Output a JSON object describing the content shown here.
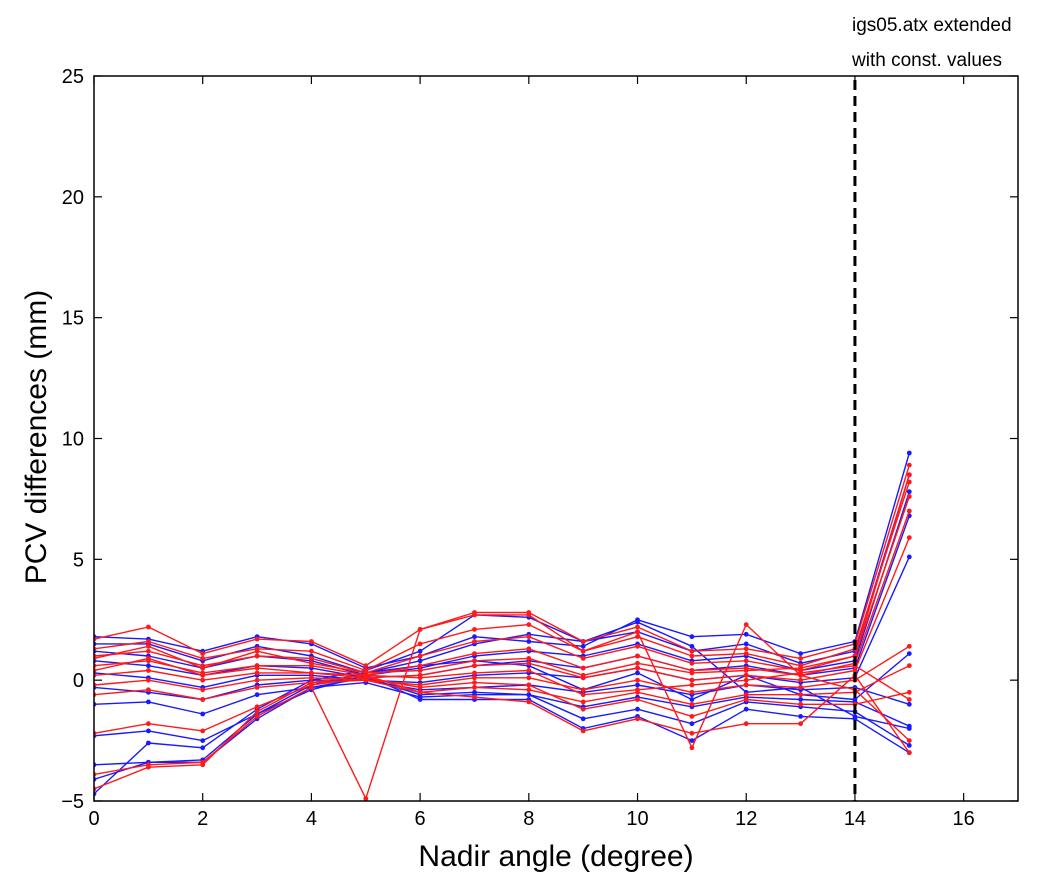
{
  "chart_data": {
    "type": "line",
    "title": "",
    "xlabel": "Nadir angle (degree)",
    "ylabel": "PCV differences (mm)",
    "xlim": [
      0,
      17
    ],
    "ylim": [
      -5,
      25
    ],
    "xticks": [
      0,
      2,
      4,
      6,
      8,
      10,
      12,
      14,
      16
    ],
    "yticks": [
      -5,
      0,
      5,
      10,
      15,
      20,
      25
    ],
    "grid": false,
    "legend": "none",
    "colors": {
      "series_a": "#1a1aff",
      "series_b": "#ff1a1a",
      "marker_line": "#000000"
    },
    "annotation": {
      "lines": [
        "igs05.atx extended",
        "with const. values"
      ],
      "vline_x": 14
    },
    "x": [
      0,
      1,
      2,
      3,
      4,
      5,
      6,
      7,
      8,
      9,
      10,
      11,
      12,
      13,
      14,
      15
    ],
    "series": [
      {
        "color": "blue",
        "values": [
          1.8,
          1.7,
          1.2,
          1.8,
          1.5,
          0.5,
          1.0,
          1.8,
          1.6,
          1.4,
          2.5,
          1.8,
          1.9,
          1.1,
          1.6,
          9.4
        ]
      },
      {
        "color": "blue",
        "values": [
          1.5,
          1.5,
          0.8,
          1.4,
          1.0,
          0.3,
          0.8,
          1.5,
          1.9,
          1.6,
          2.0,
          1.2,
          1.5,
          0.7,
          1.2,
          8.5
        ]
      },
      {
        "color": "blue",
        "values": [
          1.2,
          1.0,
          0.5,
          1.0,
          0.8,
          0.2,
          0.5,
          1.0,
          1.2,
          1.0,
          1.5,
          0.8,
          1.0,
          0.4,
          0.8,
          7.8
        ]
      },
      {
        "color": "blue",
        "values": [
          0.8,
          0.6,
          0.2,
          0.6,
          0.5,
          0.1,
          0.2,
          0.6,
          0.8,
          0.5,
          1.0,
          0.4,
          0.6,
          0.2,
          0.5,
          6.8
        ]
      },
      {
        "color": "blue",
        "values": [
          0.3,
          0.1,
          -0.3,
          0.2,
          0.2,
          0.0,
          -0.1,
          0.2,
          0.3,
          0.1,
          0.5,
          0.0,
          0.2,
          -0.1,
          0.1,
          5.1
        ]
      },
      {
        "color": "blue",
        "values": [
          -0.3,
          -0.5,
          -0.8,
          -0.2,
          0.0,
          0.0,
          -0.4,
          -0.3,
          -0.2,
          -0.5,
          -0.2,
          -0.6,
          -0.2,
          -0.4,
          -0.3,
          -1.0
        ]
      },
      {
        "color": "blue",
        "values": [
          -1.0,
          -0.9,
          -1.4,
          -0.6,
          -0.3,
          -0.1,
          -0.7,
          -0.6,
          -0.6,
          -1.1,
          -0.7,
          -1.1,
          -0.7,
          -0.8,
          -0.9,
          -1.9
        ]
      },
      {
        "color": "blue",
        "values": [
          -2.3,
          -2.1,
          -2.5,
          -1.4,
          -0.4,
          0.2,
          -0.8,
          -0.8,
          -0.8,
          -2.0,
          -1.5,
          -2.5,
          -1.2,
          -1.5,
          -1.6,
          -3.0
        ]
      },
      {
        "color": "blue",
        "values": [
          -3.5,
          -3.4,
          -3.4,
          -1.6,
          -0.3,
          0.1,
          -0.6,
          -0.5,
          -0.6,
          -1.6,
          -1.2,
          -1.8,
          -0.9,
          -1.1,
          -1.3,
          -2.7
        ]
      },
      {
        "color": "blue",
        "values": [
          -4.1,
          -3.4,
          -3.3,
          -1.4,
          -0.2,
          0.3,
          0.6,
          0.8,
          0.6,
          -0.4,
          0.3,
          -0.8,
          0.2,
          -0.6,
          -0.8,
          1.1
        ]
      },
      {
        "color": "blue",
        "values": [
          -4.7,
          -2.6,
          -2.8,
          -1.2,
          0.0,
          0.4,
          1.2,
          2.7,
          2.6,
          1.6,
          2.4,
          1.4,
          -0.5,
          -0.3,
          -1.5,
          -2.0
        ]
      },
      {
        "color": "red",
        "values": [
          1.7,
          2.2,
          1.1,
          1.7,
          1.6,
          0.6,
          2.1,
          2.8,
          2.8,
          1.6,
          2.2,
          1.2,
          1.3,
          0.9,
          1.5,
          8.9
        ]
      },
      {
        "color": "red",
        "values": [
          1.3,
          1.6,
          0.9,
          1.3,
          1.2,
          0.4,
          1.5,
          2.1,
          2.3,
          1.2,
          1.8,
          1.0,
          1.1,
          0.6,
          1.3,
          8.2
        ]
      },
      {
        "color": "red",
        "values": [
          1.0,
          1.2,
          0.6,
          1.0,
          0.9,
          0.3,
          1.0,
          1.6,
          1.8,
          0.9,
          1.4,
          0.7,
          0.8,
          0.4,
          1.0,
          7.6
        ]
      },
      {
        "color": "red",
        "values": [
          0.6,
          0.8,
          0.3,
          0.6,
          0.6,
          0.2,
          0.6,
          1.1,
          1.3,
          0.5,
          1.0,
          0.4,
          0.5,
          0.2,
          0.7,
          7.0
        ]
      },
      {
        "color": "red",
        "values": [
          0.2,
          0.4,
          0.0,
          0.3,
          0.3,
          0.1,
          0.2,
          0.6,
          0.7,
          0.1,
          0.5,
          0.0,
          0.2,
          0.0,
          0.4,
          5.9
        ]
      },
      {
        "color": "red",
        "values": [
          -0.2,
          0.0,
          -0.4,
          0.0,
          0.1,
          0.0,
          -0.2,
          0.1,
          0.1,
          -0.4,
          0.0,
          -0.5,
          -0.2,
          -0.3,
          0.0,
          1.4
        ]
      },
      {
        "color": "red",
        "values": [
          -0.6,
          -0.4,
          -0.8,
          -0.3,
          -0.1,
          0.0,
          -0.5,
          -0.3,
          -0.4,
          -0.9,
          -0.5,
          -1.0,
          -0.6,
          -0.6,
          -0.5,
          0.6
        ]
      },
      {
        "color": "red",
        "values": [
          -2.2,
          -1.8,
          -2.1,
          -1.1,
          -0.2,
          0.1,
          -0.3,
          -0.1,
          -0.2,
          -1.2,
          -0.8,
          -1.5,
          -0.8,
          -1.0,
          -1.0,
          -0.5
        ]
      },
      {
        "color": "red",
        "values": [
          -3.9,
          -3.5,
          -3.4,
          -1.5,
          -0.3,
          -4.9,
          2.1,
          2.7,
          2.7,
          1.2,
          2.0,
          -2.8,
          2.3,
          0.2,
          -0.4,
          -2.5
        ]
      },
      {
        "color": "red",
        "values": [
          -4.5,
          -3.6,
          -3.5,
          -1.3,
          -0.1,
          0.2,
          -0.5,
          -0.7,
          -0.9,
          -2.1,
          -1.6,
          -2.2,
          -1.8,
          -1.8,
          0.2,
          -3.0
        ]
      },
      {
        "color": "red",
        "values": [
          0.4,
          0.9,
          0.2,
          0.5,
          0.3,
          0.2,
          0.1,
          0.3,
          0.4,
          -0.6,
          -0.4,
          -0.2,
          0.0,
          0.3,
          0.6,
          -0.8
        ]
      },
      {
        "color": "red",
        "values": [
          0.9,
          1.4,
          0.5,
          1.2,
          0.7,
          0.3,
          0.4,
          0.8,
          0.9,
          0.2,
          0.7,
          0.3,
          0.4,
          0.5,
          1.0,
          8.5
        ]
      }
    ]
  }
}
